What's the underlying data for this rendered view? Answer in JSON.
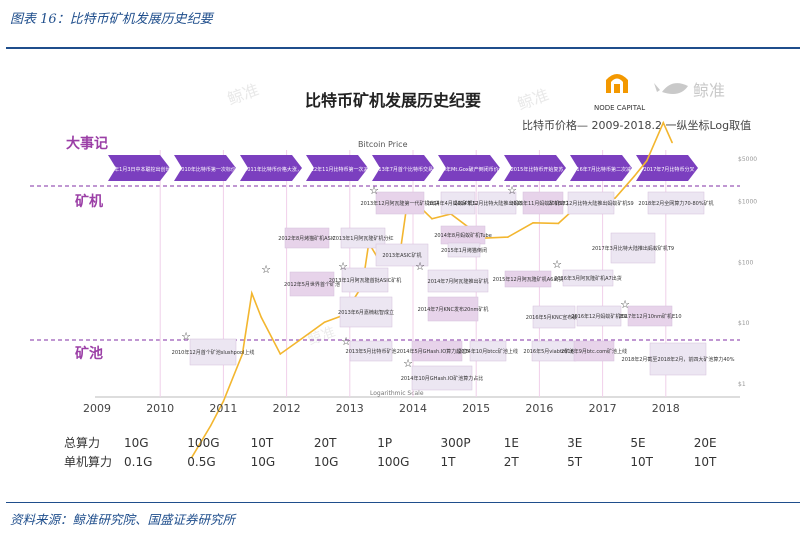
{
  "caption": "图表 16：比特币矿机发展历史纪要",
  "source": "资料来源：鲸准研究院、国盛证券研究所",
  "brand": {
    "node_capital": "NODE CAPITAL",
    "jingzhun": "鲸准",
    "accent": "#f39800",
    "purple": "#7b2c86"
  },
  "chart_data": {
    "type": "line",
    "title": "比特币矿机发展历史纪要",
    "subtitle": "比特币价格— 2009-2018.2 一纵坐标Log取值",
    "inner_title": "Bitcoin Price",
    "scale_label": "Logarithmic Scale",
    "y_scale": "log",
    "y_ticks": [
      "$5000",
      "$1000",
      "$100",
      "$10",
      "$1"
    ],
    "years": [
      "2009",
      "2010",
      "2011",
      "2012",
      "2013",
      "2014",
      "2015",
      "2016",
      "2017",
      "2018"
    ],
    "row_labels": [
      "大事记",
      "矿机",
      "矿池"
    ],
    "series": [
      {
        "color": "#f3b62f",
        "x": [
          2010.5,
          2010.8,
          2011.0,
          2011.3,
          2011.45,
          2011.6,
          2011.9,
          2012.2,
          2012.6,
          2012.9,
          2013.2,
          2013.3,
          2013.5,
          2013.8,
          2013.92,
          2014.1,
          2014.3,
          2014.6,
          2014.9,
          2015.1,
          2015.5,
          2015.9,
          2016.3,
          2016.5,
          2016.9,
          2017.2,
          2017.5,
          2017.7,
          2017.96,
          2018.1
        ],
        "y": [
          0.06,
          0.2,
          0.5,
          3,
          30,
          12,
          3,
          5,
          10,
          13,
          40,
          200,
          90,
          150,
          1100,
          800,
          500,
          600,
          350,
          240,
          250,
          430,
          420,
          650,
          900,
          1100,
          2500,
          4500,
          19000,
          9000
        ]
      }
    ],
    "events": [
      {
        "row": "大事记",
        "text": "2009年1月3日中本聪挖出创世区块"
      },
      {
        "row": "大事记",
        "text": "2010年比特币第一次标价"
      },
      {
        "row": "大事记",
        "text": "2011年比特币价格大涨，"
      },
      {
        "row": "大事记",
        "text": "2012年11月比特币第一次减半"
      },
      {
        "row": "大事记",
        "text": "2013年7月首个比特币交易所"
      },
      {
        "row": "大事记",
        "text": "2014年Mt.Gox破产倒闭币价大跌"
      },
      {
        "row": "大事记",
        "text": "2015年比特币开始复苏"
      },
      {
        "row": "大事记",
        "text": "2016年7月比特币第二次减半"
      },
      {
        "row": "大事记",
        "text": "2017年7月比特币分叉"
      },
      {
        "row": "矿机",
        "text": "2013年12月阿瓦隆第一代矿机出货"
      },
      {
        "row": "矿机",
        "text": "2014年4月蚂蚁矿机S2出货"
      },
      {
        "row": "矿机",
        "text": "2014年12月比特大陆推出蚂蚁矿机S5"
      },
      {
        "row": "矿机",
        "text": "2015年11月蚂蚁矿机S7发布"
      },
      {
        "row": "矿机",
        "text": "2016年12月比特大陆推出蚂蚁矿机S9"
      },
      {
        "row": "矿机",
        "text": "2018年2月全网算力70-80%矿机"
      },
      {
        "row": "矿机",
        "text": "2012年8月烤猫矿机ASIC"
      },
      {
        "row": "矿机",
        "text": "2013年1月阿瓦隆矿机分红"
      },
      {
        "row": "矿机",
        "text": "2013年ASIC矿机"
      },
      {
        "row": "矿机",
        "text": "2014年8月蚂蚁矿机Tube"
      },
      {
        "row": "矿机",
        "text": "2015年1月烤猫倒闭"
      },
      {
        "row": "矿机",
        "text": "2017年3月比特大陆推出蚂蚁矿机T9"
      },
      {
        "row": "矿机",
        "text": "2012年5月世界首个矿池"
      },
      {
        "row": "矿机",
        "text": "2013年1月阿瓦隆首批ASIC矿机"
      },
      {
        "row": "矿机",
        "text": "2014年7月阿瓦隆推出矿机"
      },
      {
        "row": "矿机",
        "text": "2015年12月阿瓦隆矿机A6出货"
      },
      {
        "row": "矿机",
        "text": "2016年3月阿瓦隆矿机A7出货"
      },
      {
        "row": "矿机",
        "text": "2013年6月嘉楠耘智成立"
      },
      {
        "row": "矿机",
        "text": "2014年7月KNC发布20nm矿机"
      },
      {
        "row": "矿机",
        "text": "2016年5月KNC宣布破产"
      },
      {
        "row": "矿机",
        "text": "2016年12月蚂蚁矿机E9"
      },
      {
        "row": "矿机",
        "text": "2017年12月10nm矿机E10"
      },
      {
        "row": "矿池",
        "text": "2010年12月首个矿池slushpool上线"
      },
      {
        "row": "矿池",
        "text": "2013年5月比特币矿池"
      },
      {
        "row": "矿池",
        "text": "2014年5月GHash.IO算力超过50%"
      },
      {
        "row": "矿池",
        "text": "2014年10月btcc矿池上线"
      },
      {
        "row": "矿池",
        "text": "2016年5月viabtc矿池上线"
      },
      {
        "row": "矿池",
        "text": "2016年9月btc.com矿池上线"
      },
      {
        "row": "矿池",
        "text": "2018年2月截至2018年2月，前四大矿池算力40%"
      },
      {
        "row": "矿池",
        "text": "2014年10月GHash.IO矿池算力占比"
      }
    ],
    "hashrate": {
      "total_label": "总算力",
      "single_label": "单机算力",
      "total": [
        "10G",
        "100G",
        "10T",
        "20T",
        "1P",
        "300P",
        "1E",
        "3E",
        "5E",
        "20E"
      ],
      "single": [
        "0.1G",
        "0.5G",
        "10G",
        "10G",
        "100G",
        "1T",
        "2T",
        "5T",
        "10T",
        "10T"
      ]
    }
  }
}
